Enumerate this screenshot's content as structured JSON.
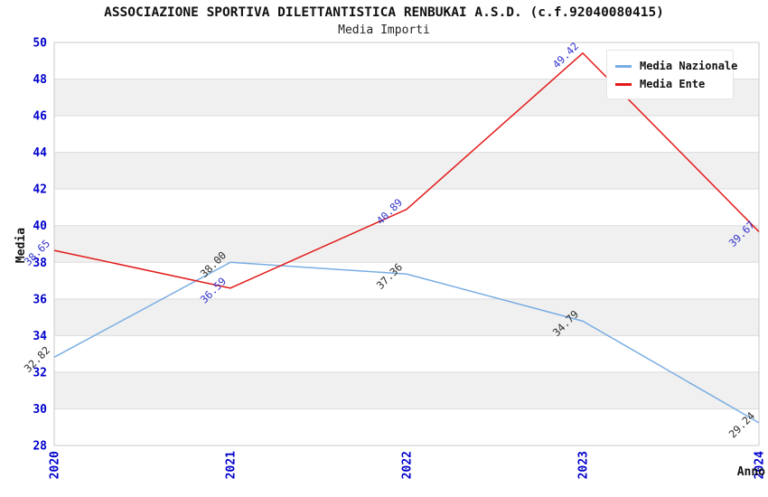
{
  "header": {
    "title": "ASSOCIAZIONE SPORTIVA DILETTANTISTICA RENBUKAI A.S.D. (c.f.92040080415)",
    "subtitle": "Media Importi"
  },
  "chart_data": {
    "type": "line",
    "title": "ASSOCIAZIONE SPORTIVA DILETTANTISTICA RENBUKAI A.S.D. (c.f.92040080415)",
    "subtitle": "Media Importi",
    "xlabel": "Anno",
    "ylabel": "Media",
    "categories": [
      "2020",
      "2021",
      "2022",
      "2023",
      "2024"
    ],
    "series": [
      {
        "name": "Media Nazionale",
        "color": "#78ADE3",
        "label_color": "#2B2B2B",
        "values": [
          32.82,
          38.0,
          37.36,
          34.79,
          29.24
        ]
      },
      {
        "name": "Media Ente",
        "color": "#E31A1A",
        "label_color": "#3333CC",
        "values": [
          38.65,
          36.59,
          40.89,
          49.42,
          39.67
        ]
      }
    ],
    "ylim": [
      28,
      50
    ],
    "yticks": [
      28,
      30,
      32,
      34,
      36,
      38,
      40,
      42,
      44,
      46,
      48,
      50
    ],
    "grid": "horizontal gridlines with alternating gray bands",
    "legend_position": "top-right",
    "colors": {
      "tick_label": "#0000CC",
      "band": "#F0F0F0",
      "grid": "#DCDCDC",
      "border": "#C9C9C9",
      "text": "#111111",
      "background": "#FFFFFF"
    }
  }
}
